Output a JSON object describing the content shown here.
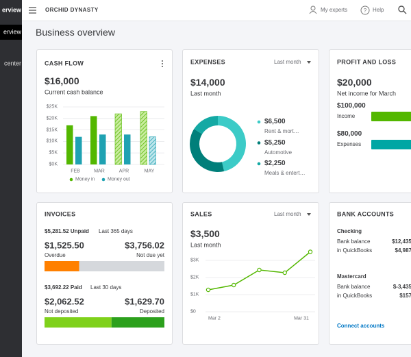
{
  "sidebar": {
    "items": [
      "erview",
      "erview",
      "center"
    ]
  },
  "topbar": {
    "company": "ORCHID DYNASTY",
    "links": [
      "My experts",
      "Help"
    ]
  },
  "page_title": "Business overview",
  "cash_flow": {
    "title": "CASH FLOW",
    "amount": "$16,000",
    "caption": "Current cash balance",
    "chart": {
      "type": "bar",
      "categories": [
        "FEB",
        "MAR",
        "APR",
        "MAY"
      ],
      "series": [
        {
          "name": "Money in",
          "color": "#53b700",
          "values": [
            17000,
            21000,
            22000,
            23000
          ],
          "hatched": [
            false,
            false,
            true,
            true
          ]
        },
        {
          "name": "Money out",
          "color": "#1fa2b2",
          "values": [
            12000,
            13000,
            13000,
            12000
          ],
          "hatched": [
            false,
            false,
            false,
            true
          ]
        }
      ],
      "ylim": [
        0,
        25000
      ],
      "yticks": [
        {
          "value": 0,
          "label": "$0K"
        },
        {
          "value": 5000,
          "label": "$5K"
        },
        {
          "value": 10000,
          "label": "$10K"
        },
        {
          "value": 15000,
          "label": "$15K"
        },
        {
          "value": 20000,
          "label": "$20K"
        },
        {
          "value": 25000,
          "label": "$25K"
        }
      ],
      "grid": true
    }
  },
  "expenses": {
    "title": "EXPENSES",
    "period": "Last month",
    "amount": "$14,000",
    "caption": "Last month",
    "chart": {
      "type": "pie",
      "donut": true,
      "values": [
        6500,
        5250,
        2250
      ],
      "value_labels": [
        "$6,500",
        "$5,250",
        "$2,250"
      ],
      "categories": [
        "Rent & mort…",
        "Automotive",
        "Meals & entert…"
      ],
      "colors": [
        "#3ccbc7",
        "#007f7a",
        "#14a9a4"
      ]
    }
  },
  "profit_loss": {
    "title": "PROFIT AND LOSS",
    "amount": "$20,000",
    "caption": "Net income for March",
    "chart": {
      "type": "bar",
      "orientation": "horizontal",
      "categories": [
        "Income",
        "Expenses"
      ],
      "values": [
        100000,
        80000
      ],
      "value_labels": [
        "$100,000",
        "$80,000"
      ],
      "colors": [
        "#53b700",
        "#00a6a4"
      ]
    }
  },
  "invoices": {
    "title": "INVOICES",
    "unpaid": {
      "total": "$5,281.52 Unpaid",
      "period": "Last 365 days",
      "values": [
        1525.5,
        3756.02
      ],
      "value_labels": [
        "$1,525.50",
        "$3,756.02"
      ],
      "labels": [
        "Overdue",
        "Not due yet"
      ],
      "colors": [
        "#ff8000",
        "#d5d8dc"
      ]
    },
    "paid": {
      "total": "$3,692.22 Paid",
      "period": "Last 30 days",
      "values": [
        2062.52,
        1629.7
      ],
      "value_labels": [
        "$2,062.52",
        "$1,629.70"
      ],
      "labels": [
        "Not deposited",
        "Deposited"
      ],
      "colors": [
        "#7fd11b",
        "#2ca01c"
      ]
    }
  },
  "sales": {
    "title": "SALES",
    "period": "Last month",
    "amount": "$3,500",
    "caption": "Last month",
    "chart": {
      "type": "line",
      "x_labels": [
        "Mar 2",
        "Mar 31"
      ],
      "values": [
        1280,
        1560,
        2440,
        2280,
        3500
      ],
      "color": "#53b700",
      "ylim": [
        0,
        3500
      ],
      "yticks": [
        {
          "value": 0,
          "label": "$0"
        },
        {
          "value": 1000,
          "label": "$1K"
        },
        {
          "value": 2000,
          "label": "$2K"
        },
        {
          "value": 3000,
          "label": "$3K"
        }
      ],
      "grid": true
    }
  },
  "bank_accounts": {
    "title": "BANK ACCOUNTS",
    "accounts": [
      {
        "name": "Checking",
        "rows": [
          {
            "label": "Bank balance",
            "amount": "$12,435"
          },
          {
            "label": "in QuickBooks",
            "amount": "$4,987"
          }
        ]
      },
      {
        "name": "Mastercard",
        "rows": [
          {
            "label": "Bank balance",
            "amount": "$-3,435"
          },
          {
            "label": "in QuickBooks",
            "amount": "$157"
          }
        ]
      }
    ],
    "link": "Connect accounts"
  }
}
